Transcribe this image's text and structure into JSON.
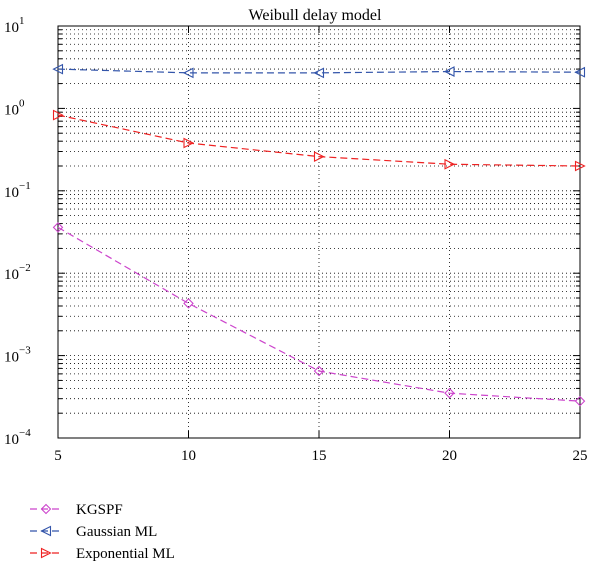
{
  "chart_data": {
    "type": "line",
    "title": "Weibull delay model",
    "xlabel": "",
    "ylabel": "",
    "xlim": [
      5,
      25
    ],
    "ylim": [
      0.0001,
      10
    ],
    "yscale": "log",
    "grid": true,
    "legend_position": "bottom-left, below plot",
    "x_ticks": [
      "5",
      "10",
      "15",
      "20",
      "25"
    ],
    "y_ticks": [
      {
        "base": "10",
        "exp": "1"
      },
      {
        "base": "10",
        "exp": "0"
      },
      {
        "base": "10",
        "exp": "−1"
      },
      {
        "base": "10",
        "exp": "−2"
      },
      {
        "base": "10",
        "exp": "−3"
      },
      {
        "base": "10",
        "exp": "−4"
      }
    ],
    "series": [
      {
        "name": "KGSPF",
        "color": "#cc44cc",
        "marker": "diamond",
        "x": [
          5,
          10,
          15,
          20,
          25
        ],
        "y": [
          0.036,
          0.0043,
          0.00065,
          0.00035,
          0.00028
        ]
      },
      {
        "name": "Gaussian ML",
        "color": "#3355aa",
        "marker": "triangle-left",
        "x": [
          5,
          10,
          15,
          20,
          25
        ],
        "y": [
          3.0,
          2.7,
          2.7,
          2.8,
          2.75
        ]
      },
      {
        "name": "Exponential ML",
        "color": "#ee2222",
        "marker": "triangle-right",
        "x": [
          5,
          10,
          15,
          20,
          25
        ],
        "y": [
          0.83,
          0.38,
          0.26,
          0.21,
          0.2
        ]
      }
    ]
  }
}
